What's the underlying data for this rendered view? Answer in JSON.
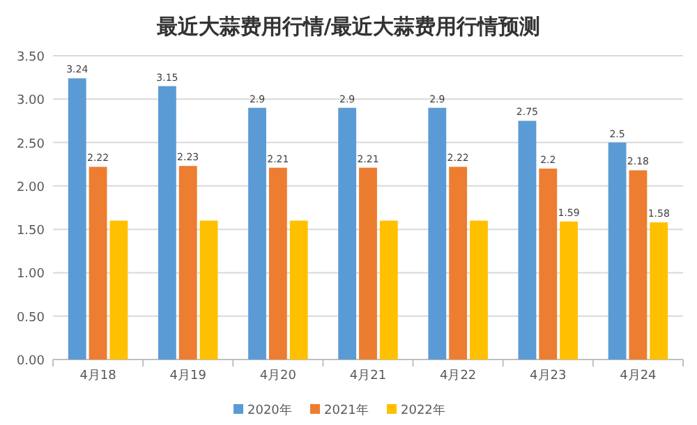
{
  "chart_data": {
    "type": "bar",
    "title": "最近大蒜费用行情/最近大蒜费用行情预测",
    "categories": [
      "4月18",
      "4月19",
      "4月20",
      "4月21",
      "4月22",
      "4月23",
      "4月24"
    ],
    "series": [
      {
        "name": "2020年",
        "color": "#5b9bd5",
        "values": [
          3.24,
          3.15,
          2.9,
          2.9,
          2.9,
          2.75,
          2.5
        ],
        "value_labels": [
          "3.24",
          "3.15",
          "2.9",
          "2.9",
          "2.9",
          "2.75",
          "2.5"
        ]
      },
      {
        "name": "2021年",
        "color": "#ed7d31",
        "values": [
          2.22,
          2.23,
          2.21,
          2.21,
          2.22,
          2.2,
          2.18
        ],
        "value_labels": [
          "2.22",
          "2.23",
          "2.21",
          "2.21",
          "2.22",
          "2.2",
          "2.18"
        ]
      },
      {
        "name": "2022年",
        "color": "#ffc000",
        "values": [
          1.6,
          1.6,
          1.6,
          1.6,
          1.6,
          1.59,
          1.58
        ],
        "value_labels": [
          null,
          null,
          null,
          null,
          null,
          "1.59",
          "1.58"
        ]
      }
    ],
    "ylim": [
      0,
      3.5
    ],
    "yticks": [
      {
        "value": 0,
        "label": "0.00"
      },
      {
        "value": 0.5,
        "label": "0.50"
      },
      {
        "value": 1,
        "label": "1.00"
      },
      {
        "value": 1.5,
        "label": "1.50"
      },
      {
        "value": 2,
        "label": "2.00"
      },
      {
        "value": 2.5,
        "label": "2.50"
      },
      {
        "value": 3,
        "label": "3.00"
      },
      {
        "value": 3.5,
        "label": "3.50"
      }
    ],
    "grid": "y",
    "legend": "bottom"
  }
}
